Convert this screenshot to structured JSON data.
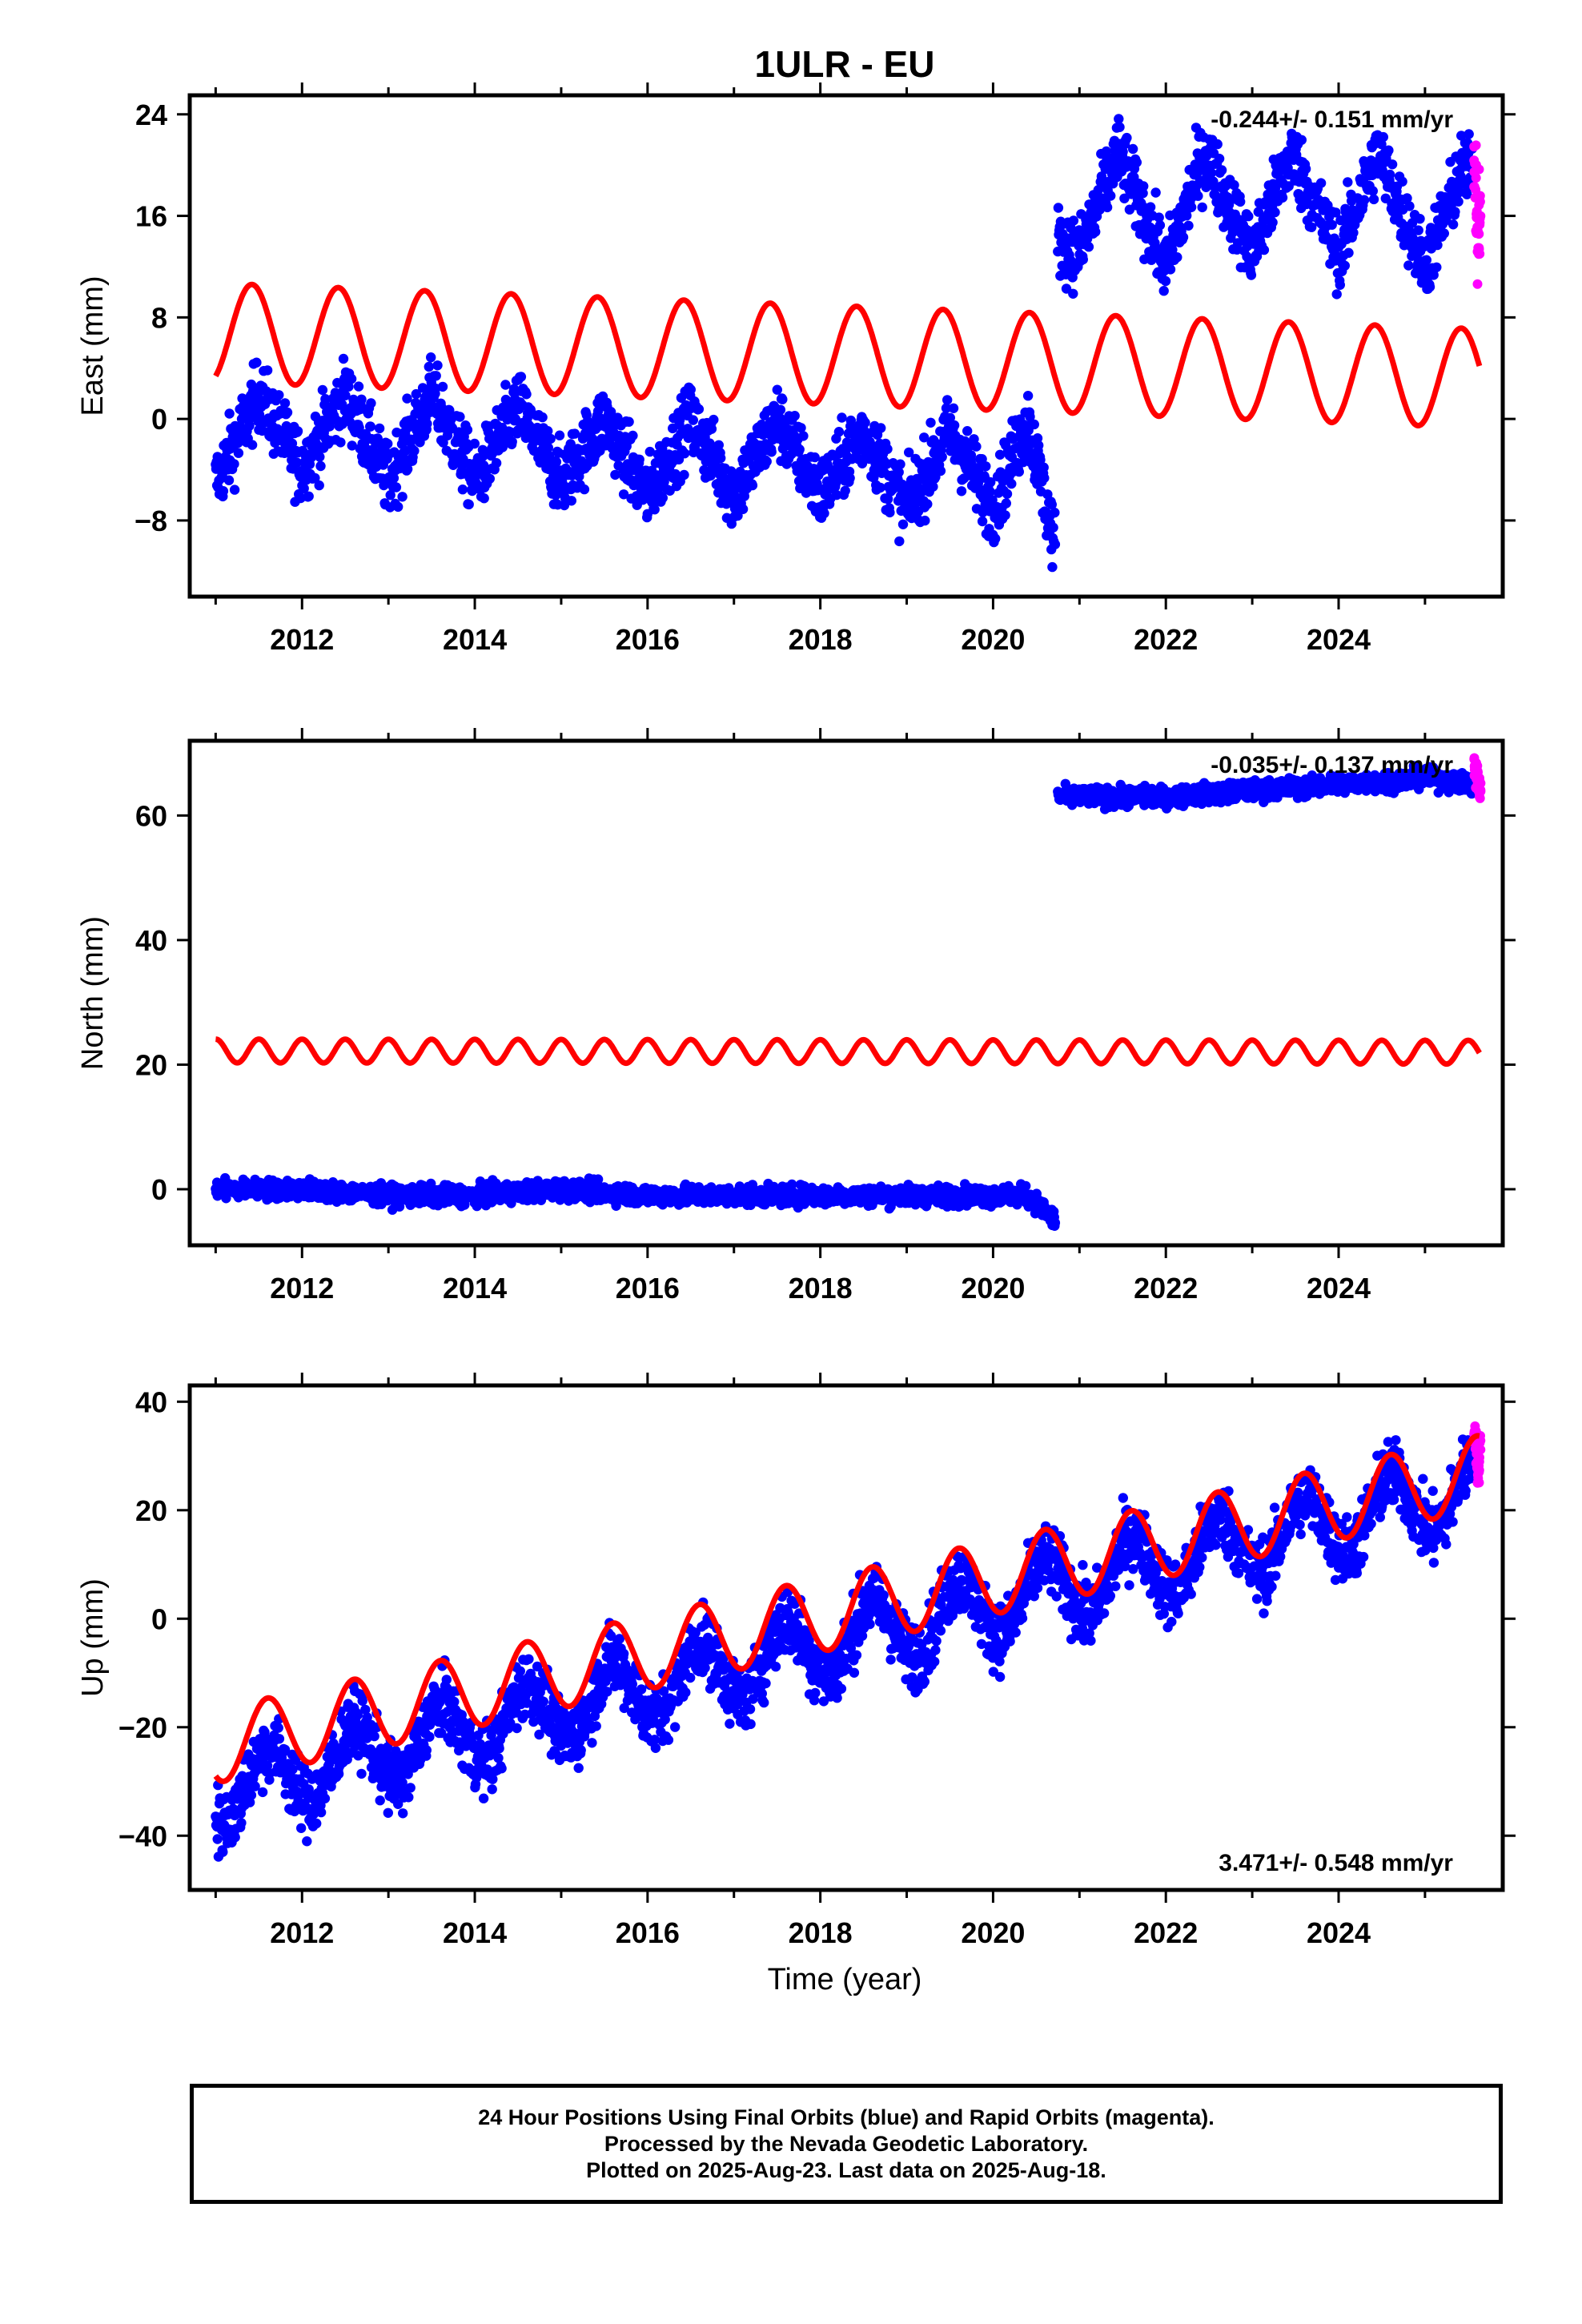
{
  "title": "1ULR - EU",
  "xlabel": "Time (year)",
  "caption": {
    "line1": "24 Hour Positions Using Final Orbits (blue) and Rapid Orbits (magenta).",
    "line2": "Processed by the Nevada Geodetic Laboratory.",
    "line3": "Plotted on 2025-Aug-23. Last data on 2025-Aug-18."
  },
  "colors": {
    "final_orbits": "#0000ff",
    "rapid_orbits": "#ff00ff",
    "model_fit": "#ff0000",
    "axes": "#000000"
  },
  "chart_data": [
    {
      "type": "scatter",
      "component": "east",
      "ylabel": "East (mm)",
      "rate_label": "-0.244+/- 0.151 mm/yr",
      "rate_position": "top-right",
      "xlim": [
        2010.7,
        2025.9
      ],
      "ylim": [
        -14,
        25.5
      ],
      "xticks": [
        2012,
        2014,
        2016,
        2018,
        2020,
        2022,
        2024
      ],
      "yticks": [
        -8,
        0,
        8,
        16,
        24
      ],
      "ytick_labels": [
        "−8",
        "0",
        "8",
        "16",
        "24"
      ],
      "grid": false,
      "offset_epoch": 2020.75,
      "series": [
        {
          "role": "final",
          "segments": [
            {
              "x": [
                2011.0,
                2011.5,
                2012.0,
                2012.5,
                2013.0,
                2013.5,
                2014.0,
                2014.5,
                2015.0,
                2015.5,
                2016.0,
                2016.5,
                2017.0,
                2017.5,
                2018.0,
                2018.5,
                2019.0,
                2019.5,
                2020.0,
                2020.4,
                2020.72
              ],
              "y": [
                -5,
                2,
                -4,
                2,
                -5,
                2,
                -5,
                1,
                -5,
                0,
                -6,
                0,
                -6,
                0,
                -6,
                -1,
                -7,
                -1,
                -7,
                0,
                -10
              ]
            },
            {
              "x": [
                2020.75,
                2021.0,
                2021.45,
                2022.0,
                2022.45,
                2023.0,
                2023.45,
                2024.0,
                2024.45,
                2025.0,
                2025.45,
                2025.55
              ],
              "y": [
                14,
                13,
                21,
                12,
                21,
                13,
                21,
                13,
                21,
                12,
                20,
                19
              ]
            }
          ],
          "amplitude": 3.2,
          "noise": 2.0
        },
        {
          "role": "rapid",
          "x": [
            2025.58,
            2025.6,
            2025.62,
            2025.63
          ],
          "y": [
            20,
            17,
            14,
            16
          ]
        },
        {
          "role": "model",
          "mean_start": 6.8,
          "mean_end": 3.2,
          "amplitude": 3.9,
          "phase_peak": 0.42
        }
      ]
    },
    {
      "type": "scatter",
      "component": "north",
      "ylabel": "North (mm)",
      "rate_label": "-0.035+/- 0.137 mm/yr",
      "rate_position": "top-right",
      "xlim": [
        2010.7,
        2025.9
      ],
      "ylim": [
        -9,
        72
      ],
      "xticks": [
        2012,
        2014,
        2016,
        2018,
        2020,
        2022,
        2024
      ],
      "yticks": [
        0,
        20,
        40,
        60
      ],
      "ytick_labels": [
        "0",
        "20",
        "40",
        "60"
      ],
      "grid": false,
      "offset_epoch": 2020.75,
      "series": [
        {
          "role": "final",
          "segments": [
            {
              "x": [
                2011.0,
                2012.0,
                2013.0,
                2014.0,
                2015.0,
                2016.0,
                2017.0,
                2018.0,
                2019.0,
                2020.0,
                2020.4,
                2020.72
              ],
              "y": [
                0,
                0,
                -1,
                -1,
                0,
                -1,
                -1,
                -1,
                -1,
                -1,
                -1,
                -5
              ]
            },
            {
              "x": [
                2020.75,
                2021.0,
                2022.0,
                2023.0,
                2024.0,
                2025.0,
                2025.55
              ],
              "y": [
                63,
                63,
                63,
                64,
                65,
                66,
                65
              ]
            }
          ],
          "amplitude": 0.6,
          "noise": 1.1
        },
        {
          "role": "rapid",
          "x": [
            2025.58,
            2025.6,
            2025.62,
            2025.63
          ],
          "y": [
            68,
            65,
            66,
            64
          ]
        },
        {
          "role": "model",
          "mean_start": 22.2,
          "mean_end": 22.0,
          "amplitude": 1.9,
          "period": 0.5,
          "phase_peak": 0.0
        }
      ]
    },
    {
      "type": "scatter",
      "component": "up",
      "ylabel": "Up (mm)",
      "rate_label": "3.471+/- 0.548 mm/yr",
      "rate_position": "bottom-right",
      "xlim": [
        2010.7,
        2025.9
      ],
      "ylim": [
        -50,
        43
      ],
      "xticks": [
        2012,
        2014,
        2016,
        2018,
        2020,
        2022,
        2024
      ],
      "yticks": [
        -40,
        -20,
        0,
        20,
        40
      ],
      "ytick_labels": [
        "−40",
        "−20",
        "0",
        "20",
        "40"
      ],
      "grid": false,
      "series": [
        {
          "role": "final",
          "segments": [
            {
              "x": [
                2011.0,
                2025.55
              ],
              "y": [
                -32,
                24
              ]
            }
          ],
          "amplitude": 6.0,
          "noise": 4.5
        },
        {
          "role": "rapid",
          "x": [
            2025.58,
            2025.6,
            2025.62,
            2025.63
          ],
          "y": [
            34,
            30,
            27,
            32
          ]
        },
        {
          "role": "model",
          "mean_start": -23.5,
          "mean_end": 27.0,
          "amplitude": 6.8,
          "phase_peak": 0.6
        }
      ]
    }
  ]
}
